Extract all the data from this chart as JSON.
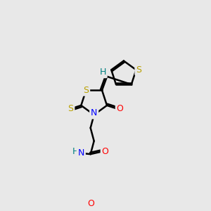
{
  "bg_color": "#e8e8e8",
  "bond_color": "#000000",
  "atom_colors": {
    "S": "#b8a000",
    "N": "#0000ff",
    "O": "#ff0000",
    "H": "#008080",
    "C": "#000000"
  },
  "figsize": [
    3.0,
    3.0
  ],
  "dpi": 100
}
